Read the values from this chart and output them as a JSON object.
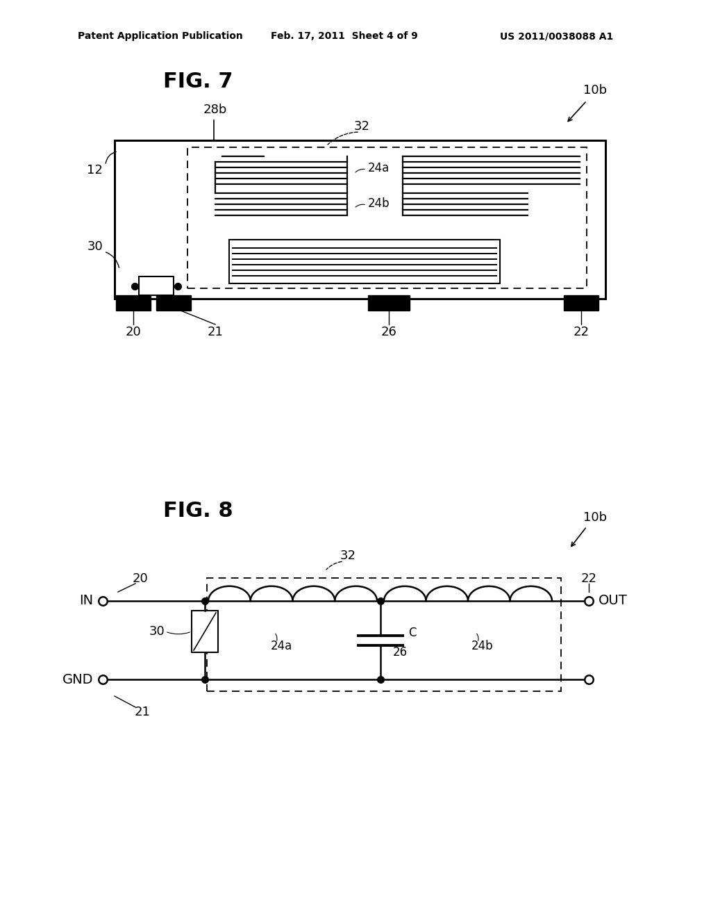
{
  "bg_color": "#ffffff",
  "header_text": "Patent Application Publication",
  "header_date": "Feb. 17, 2011  Sheet 4 of 9",
  "header_patent": "US 2011/0038088 A1",
  "fig7_title": "FIG. 7",
  "fig8_title": "FIG. 8",
  "label_10b_1": "10b",
  "label_10b_2": "10b",
  "label_12": "12",
  "label_20": "20",
  "label_21": "21",
  "label_22": "22",
  "label_24a": "24a",
  "label_24b": "24b",
  "label_26": "26",
  "label_28b": "28b",
  "label_30": "30",
  "label_32_1": "32",
  "label_32_2": "32",
  "label_IN": "IN",
  "label_OUT": "OUT",
  "label_GND": "GND",
  "label_C": "C"
}
